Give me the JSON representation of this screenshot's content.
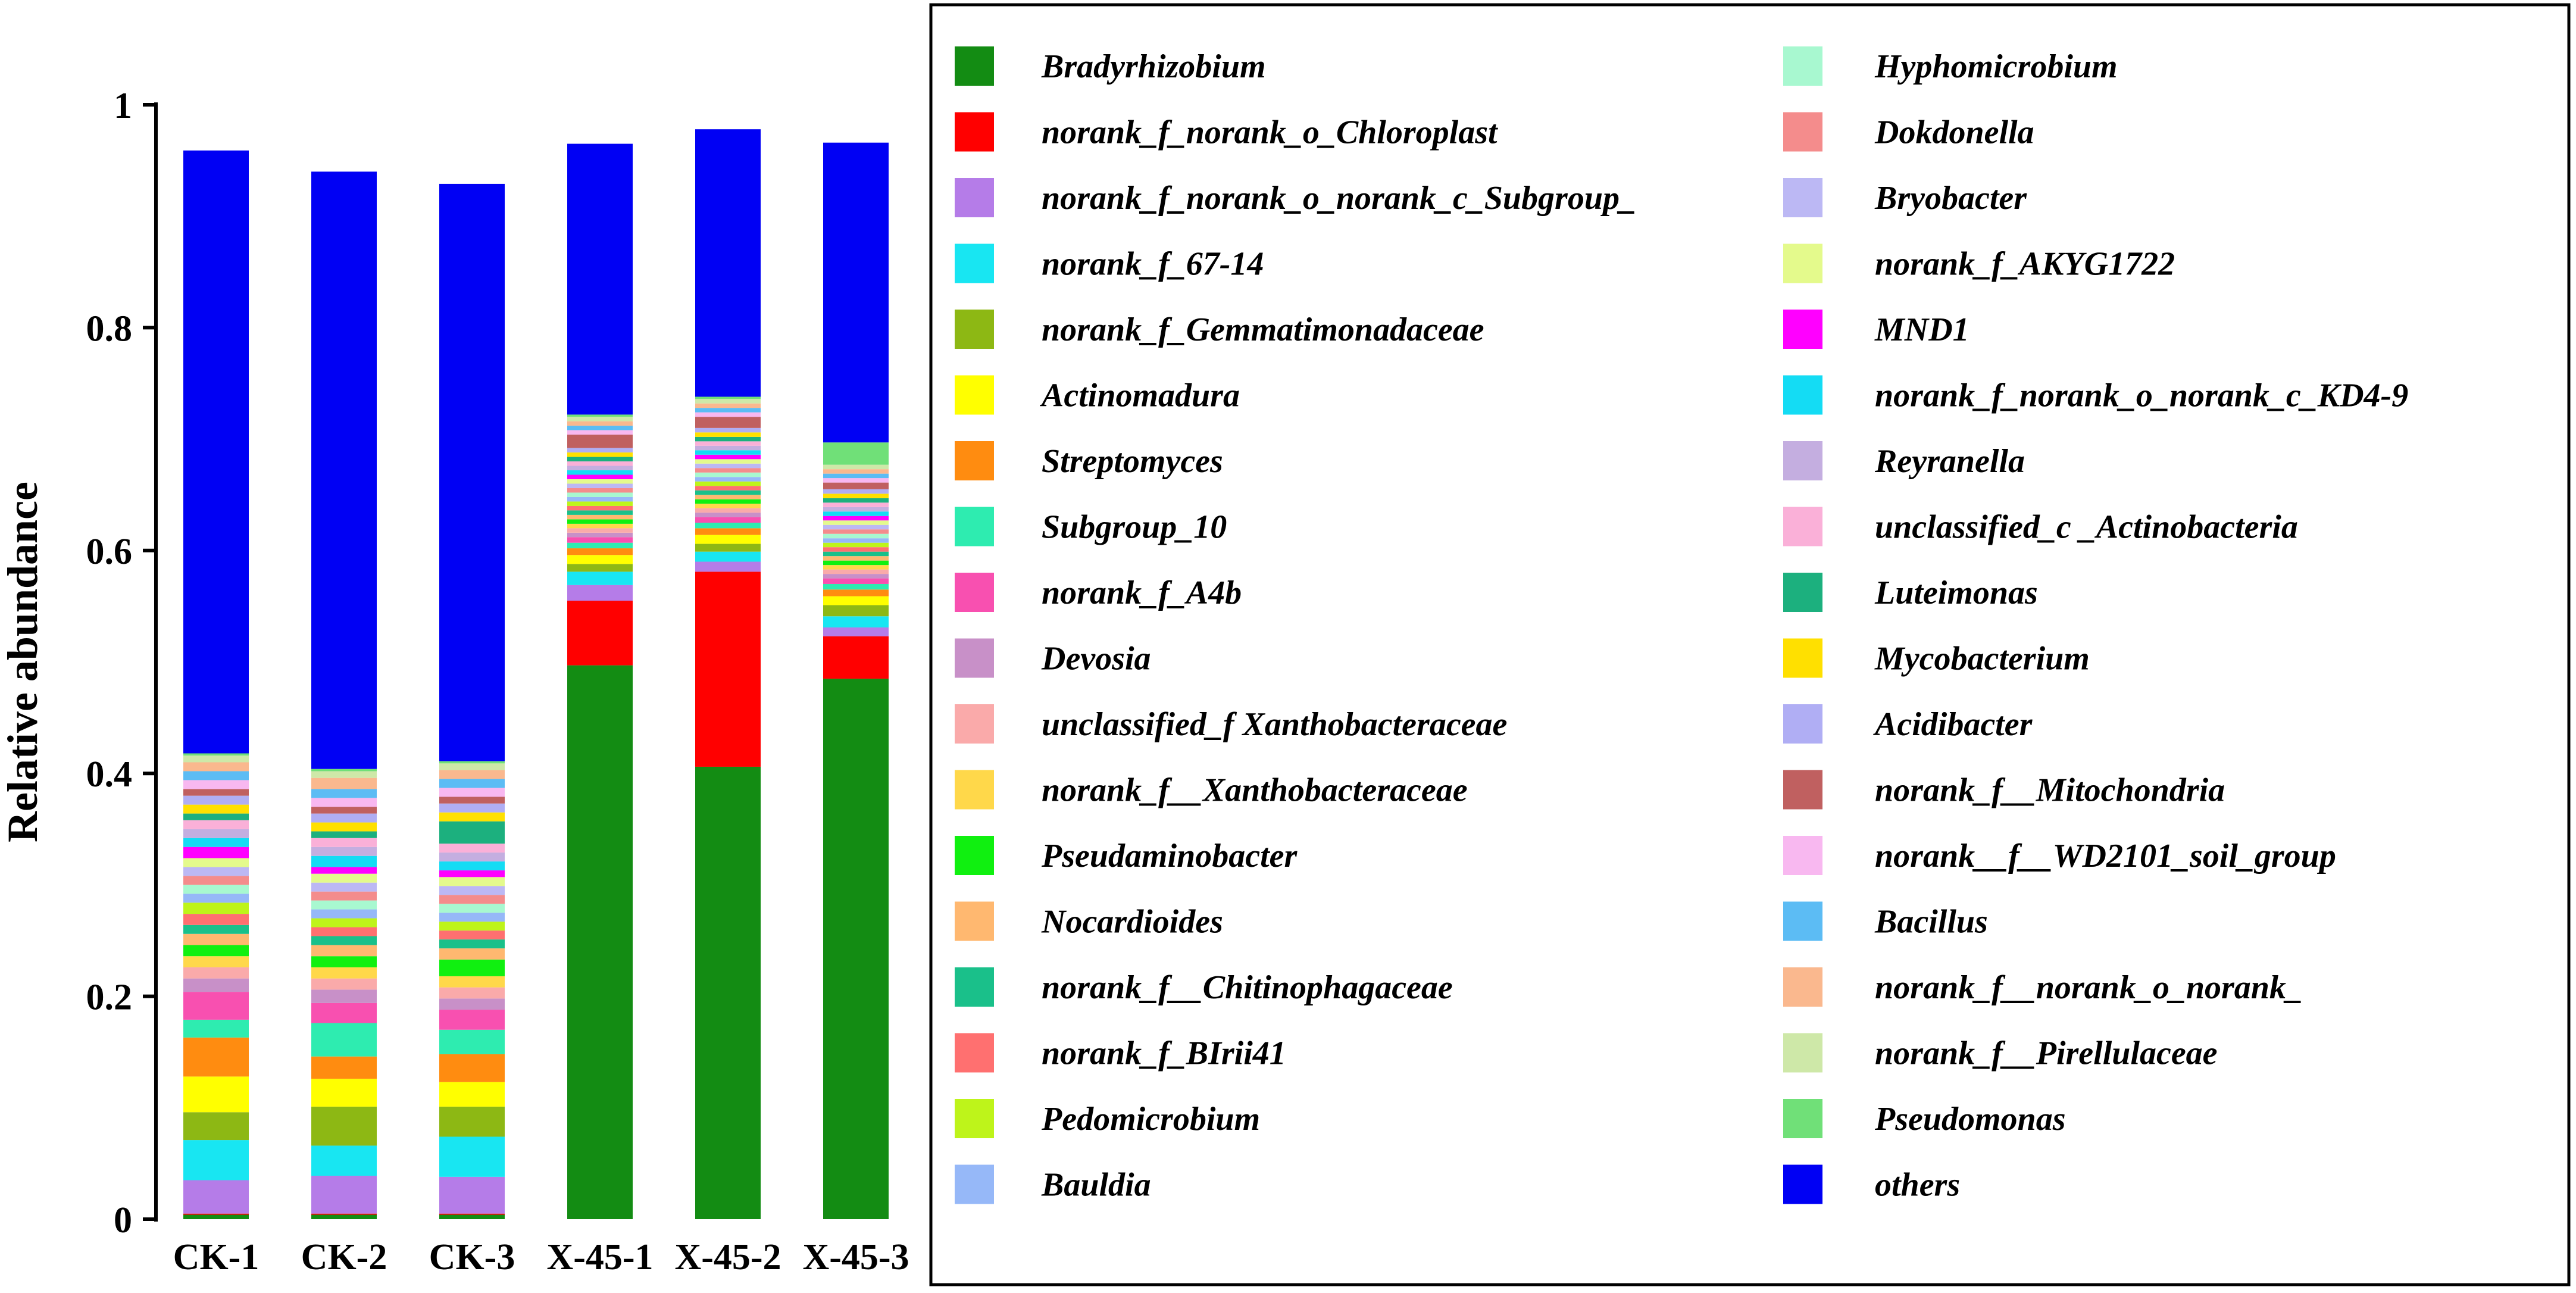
{
  "chart_data": {
    "type": "bar",
    "stacked": true,
    "ylabel": "Relative abundance",
    "xlabel": "",
    "ylim": [
      0,
      1
    ],
    "yticks": [
      "0",
      "0.2",
      "0.4",
      "0.6",
      "0.8",
      "1"
    ],
    "ytick_values": [
      0,
      0.2,
      0.4,
      0.6,
      0.8,
      1
    ],
    "grid": false,
    "legend_position": "right",
    "categories": [
      "CK-1",
      "CK-2",
      "CK-3",
      "X-45-1",
      "X-45-2",
      "X-45-3"
    ],
    "series": [
      {
        "name": "Bradyrhizobium",
        "color": "#138C13",
        "values": [
          0.004,
          0.004,
          0.004,
          0.497,
          0.406,
          0.485
        ]
      },
      {
        "name": "norank_f_norank_o_Chloroplast",
        "color": "#FF0000",
        "values": [
          0.001,
          0.001,
          0.001,
          0.058,
          0.175,
          0.038
        ]
      },
      {
        "name": "norank_f_norank_o_norank_c_Subgroup_",
        "color": "#B57CE8",
        "values": [
          0.03,
          0.034,
          0.033,
          0.014,
          0.009,
          0.008
        ]
      },
      {
        "name": "norank_f_67-14",
        "color": "#18E6F2",
        "values": [
          0.036,
          0.027,
          0.036,
          0.012,
          0.009,
          0.01
        ]
      },
      {
        "name": "norank_f_Gemmatimonadaceae",
        "color": "#8DB814",
        "values": [
          0.025,
          0.035,
          0.027,
          0.007,
          0.007,
          0.01
        ]
      },
      {
        "name": "Actinomadura",
        "color": "#FFFF00",
        "values": [
          0.032,
          0.025,
          0.022,
          0.008,
          0.008,
          0.008
        ]
      },
      {
        "name": "Streptomyces",
        "color": "#FF8C10",
        "values": [
          0.035,
          0.02,
          0.025,
          0.006,
          0.006,
          0.006
        ]
      },
      {
        "name": "Subgroup_10",
        "color": "#2EECB0",
        "values": [
          0.016,
          0.03,
          0.022,
          0.005,
          0.005,
          0.005
        ]
      },
      {
        "name": "norank_f_A4b",
        "color": "#F850B0",
        "values": [
          0.025,
          0.018,
          0.018,
          0.005,
          0.005,
          0.005
        ]
      },
      {
        "name": "Devosia",
        "color": "#C890C8",
        "values": [
          0.012,
          0.012,
          0.01,
          0.004,
          0.004,
          0.004
        ]
      },
      {
        "name": "unclassified_f Xanthobacteraceae",
        "color": "#FAAAAA",
        "values": [
          0.01,
          0.01,
          0.01,
          0.004,
          0.004,
          0.004
        ]
      },
      {
        "name": "norank_f__Xanthobacteraceae",
        "color": "#FFD84A",
        "values": [
          0.01,
          0.01,
          0.01,
          0.004,
          0.004,
          0.004
        ]
      },
      {
        "name": "Pseudaminobacter",
        "color": "#10F010",
        "values": [
          0.01,
          0.01,
          0.015,
          0.004,
          0.004,
          0.004
        ]
      },
      {
        "name": "Nocardioides",
        "color": "#FFB870",
        "values": [
          0.01,
          0.01,
          0.01,
          0.004,
          0.004,
          0.004
        ]
      },
      {
        "name": "norank_f__Chitinophagaceae",
        "color": "#1AC08A",
        "values": [
          0.008,
          0.008,
          0.008,
          0.004,
          0.004,
          0.004
        ]
      },
      {
        "name": "norank_f_BIrii41",
        "color": "#FF7070",
        "values": [
          0.01,
          0.008,
          0.008,
          0.004,
          0.004,
          0.004
        ]
      },
      {
        "name": "Pedomicrobium",
        "color": "#BEF41A",
        "values": [
          0.01,
          0.008,
          0.008,
          0.004,
          0.004,
          0.004
        ]
      },
      {
        "name": "Bauldia",
        "color": "#96B8F8",
        "values": [
          0.008,
          0.008,
          0.008,
          0.004,
          0.004,
          0.004
        ]
      },
      {
        "name": "Hyphomicrobium",
        "color": "#A8F8D0",
        "values": [
          0.008,
          0.008,
          0.008,
          0.004,
          0.004,
          0.004
        ]
      },
      {
        "name": "Dokdonella",
        "color": "#F48C8C",
        "values": [
          0.008,
          0.008,
          0.008,
          0.004,
          0.004,
          0.004
        ]
      },
      {
        "name": "Bryobacter",
        "color": "#BCB8F4",
        "values": [
          0.008,
          0.008,
          0.008,
          0.004,
          0.004,
          0.004
        ]
      },
      {
        "name": "norank_f_AKYG1722",
        "color": "#E4FA8C",
        "values": [
          0.008,
          0.008,
          0.008,
          0.004,
          0.004,
          0.004
        ]
      },
      {
        "name": "MND1",
        "color": "#FF00FF",
        "values": [
          0.01,
          0.006,
          0.006,
          0.004,
          0.004,
          0.004
        ]
      },
      {
        "name": "norank_f_norank_o_norank_c_KD4-9",
        "color": "#14DCF4",
        "values": [
          0.008,
          0.01,
          0.008,
          0.004,
          0.004,
          0.004
        ]
      },
      {
        "name": "Reyranella",
        "color": "#C4AEE0",
        "values": [
          0.008,
          0.008,
          0.008,
          0.004,
          0.004,
          0.004
        ]
      },
      {
        "name": "unclassified_c _Actinobacteria",
        "color": "#FAB0D8",
        "values": [
          0.008,
          0.008,
          0.008,
          0.004,
          0.004,
          0.004
        ]
      },
      {
        "name": "Luteimonas",
        "color": "#1CB07E",
        "values": [
          0.006,
          0.006,
          0.02,
          0.004,
          0.004,
          0.004
        ]
      },
      {
        "name": "Mycobacterium",
        "color": "#FFE000",
        "values": [
          0.008,
          0.008,
          0.008,
          0.004,
          0.004,
          0.004
        ]
      },
      {
        "name": "Acidibacter",
        "color": "#B0AEF4",
        "values": [
          0.008,
          0.008,
          0.008,
          0.004,
          0.004,
          0.004
        ]
      },
      {
        "name": "norank_f__Mitochondria",
        "color": "#C06060",
        "values": [
          0.006,
          0.006,
          0.006,
          0.012,
          0.01,
          0.006
        ]
      },
      {
        "name": "norank__f__WD2101_soil_group",
        "color": "#F8B8F0",
        "values": [
          0.008,
          0.008,
          0.008,
          0.004,
          0.004,
          0.004
        ]
      },
      {
        "name": "Bacillus",
        "color": "#5CBCF4",
        "values": [
          0.008,
          0.008,
          0.008,
          0.004,
          0.004,
          0.004
        ]
      },
      {
        "name": "norank_f__norank_o_norank_",
        "color": "#FAB88E",
        "values": [
          0.008,
          0.01,
          0.008,
          0.004,
          0.004,
          0.004
        ]
      },
      {
        "name": "norank_f__Pirellulaceae",
        "color": "#CEE8A8",
        "values": [
          0.006,
          0.006,
          0.006,
          0.004,
          0.004,
          0.004
        ]
      },
      {
        "name": "Pseudomonas",
        "color": "#70E078",
        "values": [
          0.002,
          0.002,
          0.002,
          0.002,
          0.002,
          0.02
        ]
      },
      {
        "name": "others",
        "color": "#0000F4",
        "values": [
          0.541,
          0.536,
          0.518,
          0.243,
          0.24,
          0.269
        ]
      }
    ]
  }
}
